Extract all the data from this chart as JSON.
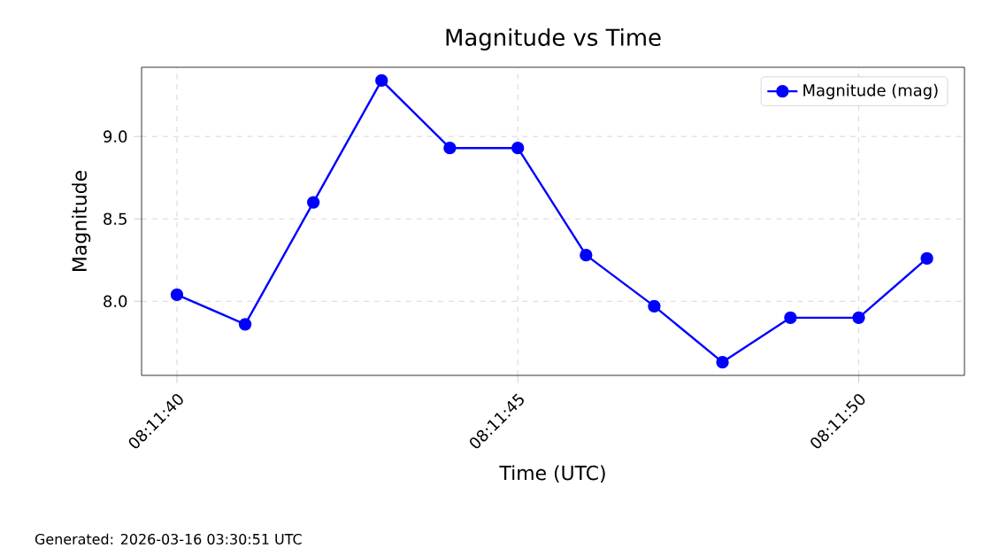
{
  "chart_data": {
    "type": "line",
    "title": "Magnitude vs Time",
    "xlabel": "Time (UTC)",
    "ylabel": "Magnitude",
    "x": [
      8.194444,
      8.194722,
      8.195,
      8.195278,
      8.195556,
      8.195833,
      8.196111,
      8.196389,
      8.196667,
      8.196944,
      8.197222,
      8.1975
    ],
    "series": [
      {
        "name": "Magnitude (mag)",
        "color": "#0000ff",
        "values": [
          8.04,
          7.86,
          8.6,
          9.34,
          8.93,
          8.93,
          8.28,
          7.97,
          7.63,
          7.9,
          7.9,
          8.26
        ]
      }
    ],
    "xlim": [
      8.1943,
      8.197653
    ],
    "ylim": [
      7.55,
      9.42
    ],
    "xticks": [
      {
        "value": 8.194444,
        "label": "08:11:40"
      },
      {
        "value": 8.195833,
        "label": "08:11:45"
      },
      {
        "value": 8.197222,
        "label": "08:11:50"
      }
    ],
    "yticks": [
      {
        "value": 8.0,
        "label": "8.0"
      },
      {
        "value": 8.5,
        "label": "8.5"
      },
      {
        "value": 9.0,
        "label": "9.0"
      }
    ],
    "grid": true,
    "legend": "top right",
    "marker": "circle",
    "line_style": "solid",
    "annotations": [
      "Generated: 2026-03-16 03:30:51 UTC"
    ]
  }
}
